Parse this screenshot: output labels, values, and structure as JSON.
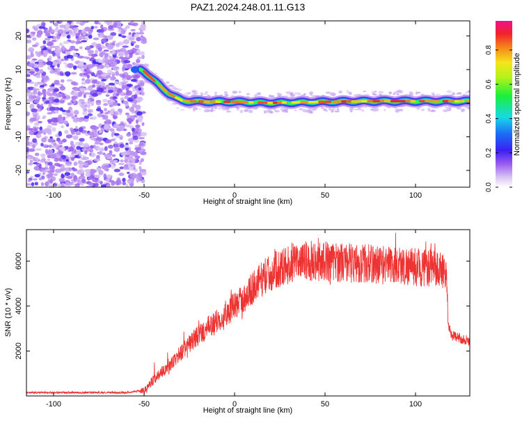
{
  "title": "PAZ1.2024.248.01.11.G13",
  "colorbar": {
    "label": "Normalized spectral amplitude",
    "ticks": [
      0.0,
      0.2,
      0.4,
      0.6,
      0.8
    ],
    "tick_labels": [
      "0.0",
      "0.2",
      "0.4",
      "0.6",
      "0.8"
    ],
    "range": [
      0,
      0.97
    ],
    "colormap": "rainbow-white-purple-blue-cyan-green-yellow-red-magenta"
  },
  "chart_data": [
    {
      "type": "heatmap",
      "xlabel": "Height of straight line (km)",
      "ylabel": "Frequency (Hz)",
      "xlim": [
        -115,
        130
      ],
      "ylim": [
        -25,
        24.5
      ],
      "xticks": [
        -100,
        -50,
        0,
        50,
        100
      ],
      "xtick_labels": [
        "-100",
        "-50",
        "0",
        "50",
        "100"
      ],
      "yticks": [
        -20,
        -10,
        0,
        10,
        20
      ],
      "ytick_labels": [
        "-20",
        "-10",
        "0",
        "10",
        "20"
      ],
      "noise_region": [
        -115,
        -50
      ],
      "ridge": {
        "x": [
          -52,
          -50,
          -47,
          -44,
          -40,
          -36,
          -32,
          -29,
          -26,
          -20,
          0,
          20,
          40,
          60,
          80,
          100,
          130
        ],
        "y": [
          10,
          9.5,
          8,
          6.5,
          4.5,
          2.8,
          1.5,
          0.8,
          0.6,
          0.5,
          0.4,
          0.1,
          0.3,
          0.5,
          0.6,
          0.6,
          0.6
        ]
      },
      "grid": false
    },
    {
      "type": "line",
      "xlabel": "Height of straight line (km)",
      "ylabel": "SNR (10 * v/v)",
      "xlim": [
        -115,
        130
      ],
      "ylim": [
        0,
        7400
      ],
      "xticks": [
        -100,
        -50,
        0,
        50,
        100
      ],
      "xtick_labels": [
        "-100",
        "-50",
        "0",
        "50",
        "100"
      ],
      "yticks": [
        2000,
        4000,
        6000
      ],
      "ytick_labels": [
        "2000",
        "4000",
        "6000"
      ],
      "series": [
        {
          "color": "#ee3333",
          "x": [
            -115,
            -60,
            -50,
            -45,
            -40,
            -35,
            -30,
            -25,
            -20,
            -15,
            -10,
            -5,
            0,
            5,
            10,
            15,
            20,
            25,
            30,
            35,
            40,
            50,
            60,
            70,
            80,
            90,
            100,
            110,
            117,
            118,
            120,
            125,
            130
          ],
          "y": [
            150,
            150,
            250,
            700,
            1100,
            1400,
            1900,
            2300,
            2700,
            3000,
            3300,
            3700,
            4000,
            4300,
            4800,
            5200,
            5500,
            5700,
            5850,
            5950,
            6000,
            6000,
            5950,
            5900,
            5850,
            5800,
            5750,
            5650,
            5600,
            3200,
            2700,
            2550,
            2450
          ]
        }
      ],
      "grid": false
    }
  ]
}
